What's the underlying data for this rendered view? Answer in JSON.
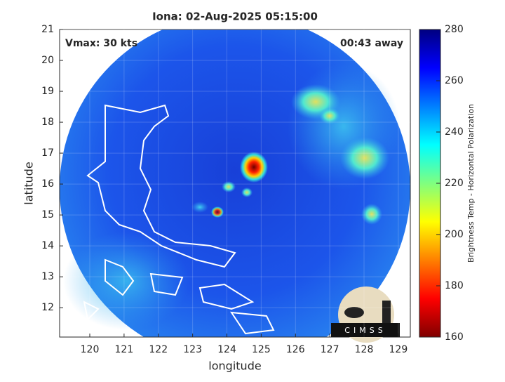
{
  "chart_data": {
    "type": "map",
    "title": "Iona: 02-Aug-2025 05:15:00",
    "xlabel": "longitude",
    "ylabel": "latitude",
    "annotations": [
      "Vmax: 30 kts",
      "00:43 away"
    ],
    "xlim": [
      119.12,
      129.35
    ],
    "xticks": [
      120,
      121,
      122,
      123,
      124,
      125,
      126,
      127,
      128,
      129
    ],
    "ylim": [
      11.05,
      21
    ],
    "yticks": [
      12,
      13,
      14,
      15,
      16,
      17,
      18,
      19,
      20,
      21
    ],
    "grid": true,
    "colorbar": {
      "label": "Brightness Temp - Horizontal Polarization",
      "lim": [
        160,
        280
      ],
      "ticks": [
        160,
        180,
        200,
        220,
        240,
        260,
        280
      ],
      "colormap": "jet"
    },
    "logo": "CIMSS"
  }
}
